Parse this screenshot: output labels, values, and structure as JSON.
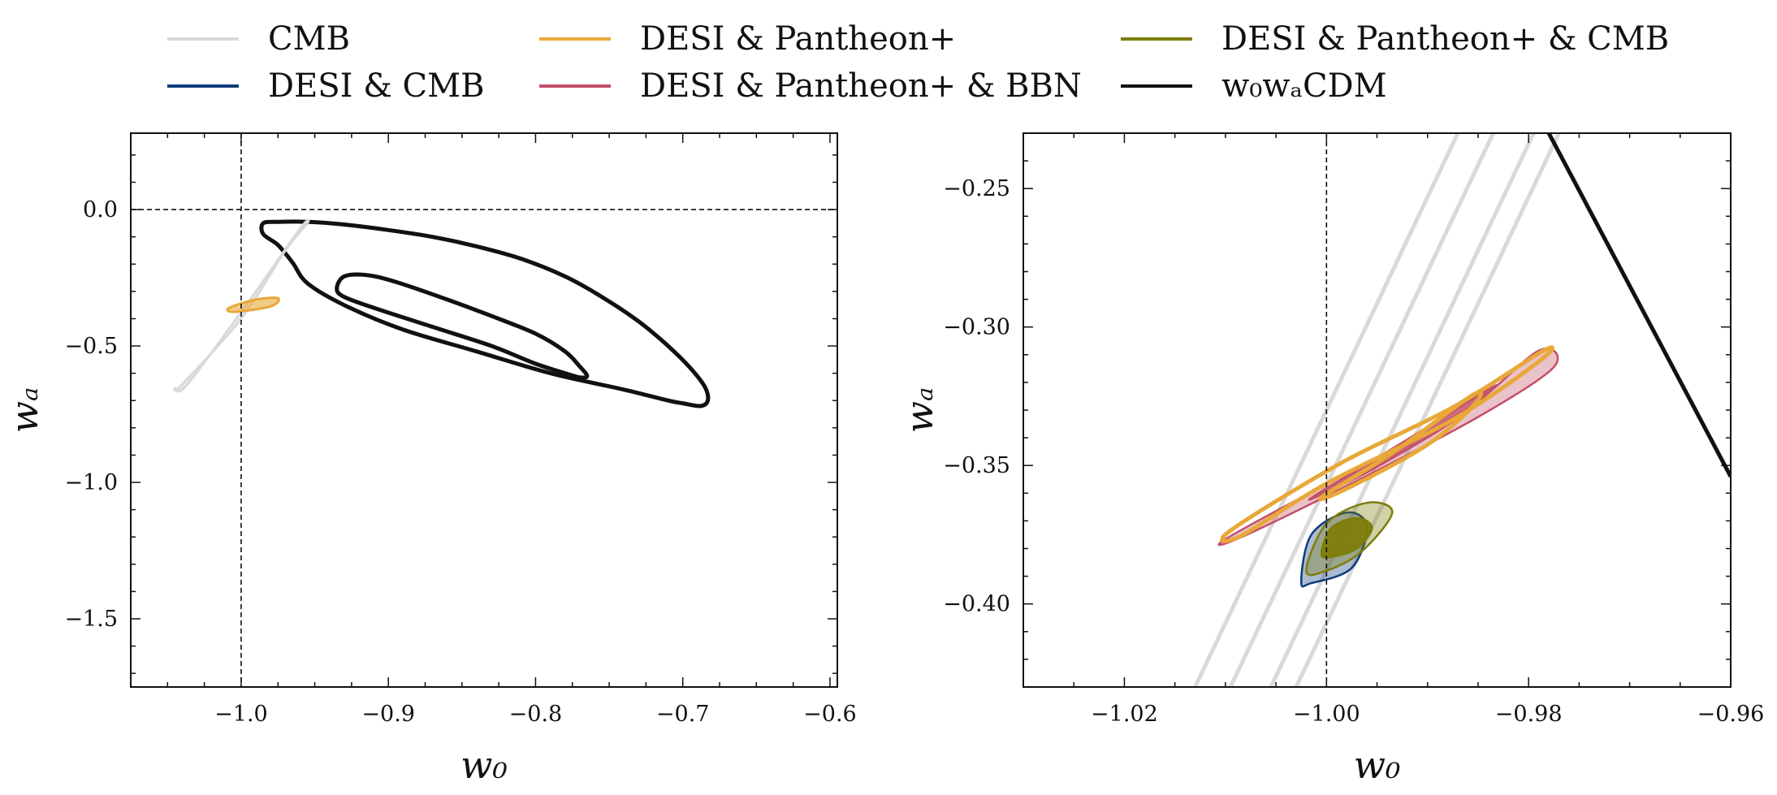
{
  "legend": {
    "items": [
      {
        "label": "CMB",
        "color": "#d9d9d9"
      },
      {
        "label": "DESI & Pantheon+",
        "color": "#e8a838"
      },
      {
        "label": "DESI & Pantheon+ & CMB",
        "color": "#7d7d0a"
      },
      {
        "label": "DESI & CMB",
        "color": "#0d3d7a"
      },
      {
        "label": "DESI & Pantheon+ & BBN",
        "color": "#c45068"
      },
      {
        "label": "w₀wₐCDM",
        "color": "#111111"
      }
    ]
  },
  "chart_data": [
    {
      "type": "contour",
      "xlabel": "w₀",
      "ylabel": "wₐ",
      "xlim": [
        -1.075,
        -0.595
      ],
      "ylim": [
        -1.75,
        0.28
      ],
      "xticks": [
        -1.0,
        -0.9,
        -0.8,
        -0.7,
        -0.6
      ],
      "xtick_labels": [
        "−1.0",
        "−0.9",
        "−0.8",
        "−0.7",
        "−0.6"
      ],
      "yticks": [
        0.0,
        -0.5,
        -1.0,
        -1.5
      ],
      "ytick_labels": [
        "0.0",
        "−0.5",
        "−1.0",
        "−1.5"
      ],
      "reference_lines": {
        "w0": -1.0,
        "wa": 0.0
      },
      "contours": [
        {
          "series": "w₀wₐCDM",
          "level": "outer",
          "points": [
            [
              -0.985,
              -0.05
            ],
            [
              -0.975,
              -0.045
            ],
            [
              -0.955,
              -0.045
            ],
            [
              -0.93,
              -0.055
            ],
            [
              -0.9,
              -0.075
            ],
            [
              -0.87,
              -0.1
            ],
            [
              -0.84,
              -0.135
            ],
            [
              -0.81,
              -0.18
            ],
            [
              -0.78,
              -0.245
            ],
            [
              -0.755,
              -0.32
            ],
            [
              -0.73,
              -0.41
            ],
            [
              -0.71,
              -0.5
            ],
            [
              -0.695,
              -0.58
            ],
            [
              -0.685,
              -0.65
            ],
            [
              -0.683,
              -0.7
            ],
            [
              -0.688,
              -0.72
            ],
            [
              -0.7,
              -0.71
            ],
            [
              -0.71,
              -0.7
            ],
            [
              -0.74,
              -0.66
            ],
            [
              -0.79,
              -0.6
            ],
            [
              -0.84,
              -0.52
            ],
            [
              -0.89,
              -0.44
            ],
            [
              -0.93,
              -0.35
            ],
            [
              -0.955,
              -0.27
            ],
            [
              -0.965,
              -0.195
            ],
            [
              -0.975,
              -0.13
            ],
            [
              -0.985,
              -0.09
            ]
          ],
          "xy_order": "path"
        },
        {
          "series": "w₀wₐCDM",
          "level": "inner",
          "points": [
            [
              -0.935,
              -0.29
            ],
            [
              -0.93,
              -0.245
            ],
            [
              -0.915,
              -0.24
            ],
            [
              -0.895,
              -0.265
            ],
            [
              -0.86,
              -0.33
            ],
            [
              -0.83,
              -0.39
            ],
            [
              -0.8,
              -0.455
            ],
            [
              -0.78,
              -0.52
            ],
            [
              -0.77,
              -0.575
            ],
            [
              -0.765,
              -0.61
            ],
            [
              -0.77,
              -0.615
            ],
            [
              -0.78,
              -0.6
            ],
            [
              -0.8,
              -0.565
            ],
            [
              -0.83,
              -0.5
            ],
            [
              -0.87,
              -0.43
            ],
            [
              -0.91,
              -0.36
            ],
            [
              -0.93,
              -0.32
            ]
          ]
        },
        {
          "series": "CMB",
          "level": "outer",
          "points": [
            [
              -1.045,
              -0.655
            ],
            [
              -1.04,
              -0.64
            ],
            [
              -1.0,
              -0.4
            ],
            [
              -0.97,
              -0.15
            ],
            [
              -0.955,
              -0.05
            ],
            [
              -0.96,
              -0.07
            ],
            [
              -0.99,
              -0.3
            ],
            [
              -1.025,
              -0.56
            ],
            [
              -1.04,
              -0.66
            ]
          ]
        },
        {
          "series": "DESI & Pantheon+",
          "level": "outer",
          "points": [
            [
              -1.005,
              -0.375
            ],
            [
              -0.98,
              -0.355
            ],
            [
              -0.975,
              -0.325
            ],
            [
              -0.99,
              -0.33
            ],
            [
              -1.008,
              -0.36
            ]
          ]
        }
      ]
    },
    {
      "type": "contour",
      "xlabel": "w₀",
      "ylabel": "wₐ",
      "xlim": [
        -1.03,
        -0.96
      ],
      "ylim": [
        -0.43,
        -0.23
      ],
      "xticks": [
        -1.02,
        -1.0,
        -0.98,
        -0.96
      ],
      "xtick_labels": [
        "−1.02",
        "−1.00",
        "−0.98",
        "−0.96"
      ],
      "yticks": [
        -0.25,
        -0.3,
        -0.35,
        -0.4
      ],
      "ytick_labels": [
        "−0.25",
        "−0.30",
        "−0.35",
        "−0.40"
      ],
      "reference_lines": {
        "w0": -1.0
      },
      "contours": [
        {
          "series": "CMB",
          "level": "band",
          "points": [
            [
              -1.013,
              -0.43
            ],
            [
              -0.987,
              -0.23
            ]
          ]
        },
        {
          "series": "CMB",
          "level": "band",
          "points": [
            [
              -1.0095,
              -0.43
            ],
            [
              -0.9835,
              -0.23
            ]
          ]
        },
        {
          "series": "CMB",
          "level": "band",
          "points": [
            [
              -1.0055,
              -0.43
            ],
            [
              -0.9795,
              -0.23
            ]
          ]
        },
        {
          "series": "CMB",
          "level": "band",
          "points": [
            [
              -1.003,
              -0.43
            ],
            [
              -0.977,
              -0.23
            ]
          ]
        },
        {
          "series": "w₀wₐCDM",
          "level": "outer",
          "points": [
            [
              -0.978,
              -0.23
            ],
            [
              -0.96,
              -0.354
            ]
          ]
        },
        {
          "series": "DESI & Pantheon+ & BBN",
          "level": "outer",
          "points": [
            [
              -1.0095,
              -0.3755
            ],
            [
              -0.9955,
              -0.348
            ],
            [
              -0.986,
              -0.3295
            ],
            [
              -0.979,
              -0.3085
            ],
            [
              -0.9775,
              -0.3145
            ],
            [
              -0.985,
              -0.3325
            ],
            [
              -0.9975,
              -0.3565
            ],
            [
              -1.0085,
              -0.376
            ]
          ]
        },
        {
          "series": "DESI & Pantheon+ & BBN",
          "level": "inner",
          "points": [
            [
              -1.001,
              -0.3605
            ],
            [
              -0.9915,
              -0.3395
            ],
            [
              -0.9835,
              -0.3215
            ],
            [
              -0.985,
              -0.3265
            ],
            [
              -0.9885,
              -0.3365
            ],
            [
              -0.996,
              -0.3525
            ],
            [
              -1.0005,
              -0.3605
            ]
          ]
        },
        {
          "series": "DESI & Pantheon+",
          "level": "outer",
          "points": [
            [
              -1.0095,
              -0.3735
            ],
            [
              -0.9985,
              -0.349
            ],
            [
              -0.9875,
              -0.329
            ],
            [
              -0.9785,
              -0.3085
            ],
            [
              -0.979,
              -0.3125
            ],
            [
              -0.9875,
              -0.3335
            ],
            [
              -1.0,
              -0.3565
            ],
            [
              -1.0085,
              -0.3755
            ]
          ]
        },
        {
          "series": "DESI & Pantheon+",
          "level": "inner",
          "points": [
            [
              -1.0005,
              -0.3615
            ],
            [
              -0.9935,
              -0.3455
            ],
            [
              -0.9855,
              -0.3245
            ],
            [
              -0.9855,
              -0.3285
            ],
            [
              -0.99,
              -0.3425
            ],
            [
              -0.9975,
              -0.3575
            ]
          ]
        },
        {
          "series": "DESI & CMB",
          "level": "outer",
          "points": [
            [
              -1.0025,
              -0.392
            ],
            [
              -1.0015,
              -0.375
            ],
            [
              -0.998,
              -0.367
            ],
            [
              -0.996,
              -0.372
            ],
            [
              -0.9975,
              -0.387
            ],
            [
              -1.0015,
              -0.3925
            ]
          ]
        },
        {
          "series": "DESI & Pantheon+ & CMB",
          "level": "outer",
          "points": [
            [
              -1.002,
              -0.388
            ],
            [
              -1.0,
              -0.371
            ],
            [
              -0.996,
              -0.3635
            ],
            [
              -0.9935,
              -0.367
            ],
            [
              -0.9965,
              -0.381
            ],
            [
              -1.0,
              -0.388
            ]
          ]
        },
        {
          "series": "DESI & Pantheon+ & CMB",
          "level": "inner",
          "points": [
            [
              -1.0005,
              -0.382
            ],
            [
              -0.9995,
              -0.3725
            ],
            [
              -0.997,
              -0.369
            ],
            [
              -0.9955,
              -0.3725
            ],
            [
              -0.997,
              -0.38
            ],
            [
              -0.9995,
              -0.383
            ]
          ]
        }
      ]
    }
  ]
}
